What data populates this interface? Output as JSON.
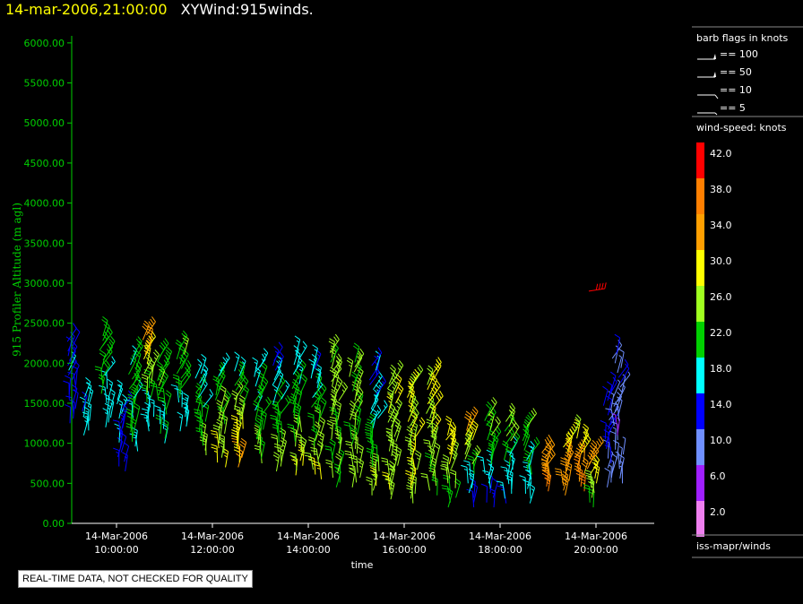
{
  "header": {
    "time": "14-mar-2006,21:00:00",
    "product": "XYWind:915winds."
  },
  "notice": "REAL-TIME DATA, NOT CHECKED FOR QUALITY",
  "legend": {
    "barb_title": "barb flags in knots",
    "barb_entries": [
      {
        "label": "== 100",
        "kind": "flag100"
      },
      {
        "label": "== 50",
        "kind": "flag50"
      },
      {
        "label": "== 10",
        "kind": "barb10"
      },
      {
        "label": "== 5",
        "kind": "barb5"
      }
    ],
    "speed_title": "wind-speed: knots",
    "speed_scale": [
      {
        "label": "42.0",
        "color": "#ff0000"
      },
      {
        "label": "38.0",
        "color": "#ff7f00"
      },
      {
        "label": "34.0",
        "color": "#ff9f00"
      },
      {
        "label": "30.0",
        "color": "#ffff00"
      },
      {
        "label": "26.0",
        "color": "#9fff1f"
      },
      {
        "label": "22.0",
        "color": "#00d000"
      },
      {
        "label": "18.0",
        "color": "#00ffff"
      },
      {
        "label": "14.0",
        "color": "#0000ff"
      },
      {
        "label": "10.0",
        "color": "#6f8fff"
      },
      {
        "label": "6.0",
        "color": "#9f1fff"
      },
      {
        "label": "2.0",
        "color": "#ef7fef"
      }
    ],
    "source": "iss-mapr/winds"
  },
  "chart_data": {
    "type": "scatter",
    "subtype": "wind-barbs",
    "title": "",
    "xlabel": "time",
    "ylabel": "915 Profiler Altitude (m agl)",
    "ylim": [
      0,
      6200
    ],
    "yticks": [
      "0.00",
      "500.00",
      "1000.00",
      "1500.00",
      "2000.00",
      "2500.00",
      "3000.00",
      "3500.00",
      "4000.00",
      "4500.00",
      "5000.00",
      "5500.00",
      "6000.00"
    ],
    "xlim": [
      "14-Mar-2006 09:00:00",
      "21:00:00"
    ],
    "xticks": [
      {
        "date": "14-Mar-2006",
        "time": "10:00:00"
      },
      {
        "date": "14-Mar-2006",
        "time": "12:00:00"
      },
      {
        "date": "14-Mar-2006",
        "time": "14:00:00"
      },
      {
        "date": "14-Mar-2006",
        "time": "16:00:00"
      },
      {
        "date": "14-Mar-2006",
        "time": "18:00:00"
      },
      {
        "date": "14-Mar-2006",
        "time": "20:00:00"
      }
    ],
    "colors": {
      "axis": "#00d000",
      "tick_text": "#ffffff"
    },
    "profiles": [
      {
        "t": 9.1,
        "bottom": 1250,
        "top": 2300,
        "ks": 15,
        "kt": 14
      },
      {
        "t": 9.4,
        "bottom": 1100,
        "top": 1600,
        "ks": 17,
        "kt": 17
      },
      {
        "t": 9.8,
        "bottom": 1200,
        "top": 2350,
        "ks": 18,
        "kt": 24
      },
      {
        "t": 10.1,
        "bottom": 650,
        "top": 1550,
        "ks": 15,
        "kt": 16
      },
      {
        "t": 10.4,
        "bottom": 900,
        "top": 2100,
        "ks": 20,
        "kt": 22
      },
      {
        "t": 10.7,
        "bottom": 1150,
        "top": 2400,
        "ks": 16,
        "kt": 36
      },
      {
        "t": 11.0,
        "bottom": 1000,
        "top": 2100,
        "ks": 20,
        "kt": 24
      },
      {
        "t": 11.4,
        "bottom": 1150,
        "top": 2200,
        "ks": 18,
        "kt": 24
      },
      {
        "t": 11.8,
        "bottom": 850,
        "top": 1900,
        "ks": 26,
        "kt": 18
      },
      {
        "t": 12.2,
        "bottom": 700,
        "top": 1950,
        "ks": 28,
        "kt": 20
      },
      {
        "t": 12.6,
        "bottom": 700,
        "top": 1900,
        "ks": 34,
        "kt": 18
      },
      {
        "t": 13.0,
        "bottom": 750,
        "top": 1950,
        "ks": 26,
        "kt": 18
      },
      {
        "t": 13.4,
        "bottom": 650,
        "top": 2050,
        "ks": 26,
        "kt": 16
      },
      {
        "t": 13.8,
        "bottom": 600,
        "top": 2100,
        "ks": 28,
        "kt": 18
      },
      {
        "t": 14.2,
        "bottom": 550,
        "top": 2000,
        "ks": 28,
        "kt": 16
      },
      {
        "t": 14.6,
        "bottom": 450,
        "top": 2150,
        "ks": 24,
        "kt": 26
      },
      {
        "t": 15.0,
        "bottom": 450,
        "top": 2050,
        "ks": 26,
        "kt": 24
      },
      {
        "t": 15.4,
        "bottom": 350,
        "top": 2000,
        "ks": 28,
        "kt": 14
      },
      {
        "t": 15.8,
        "bottom": 300,
        "top": 1850,
        "ks": 26,
        "kt": 28
      },
      {
        "t": 16.2,
        "bottom": 250,
        "top": 1800,
        "ks": 28,
        "kt": 28
      },
      {
        "t": 16.6,
        "bottom": 350,
        "top": 1850,
        "ks": 24,
        "kt": 30
      },
      {
        "t": 17.0,
        "bottom": 200,
        "top": 1150,
        "ks": 22,
        "kt": 30
      },
      {
        "t": 17.4,
        "bottom": 200,
        "top": 1250,
        "ks": 14,
        "kt": 34
      },
      {
        "t": 17.8,
        "bottom": 200,
        "top": 1350,
        "ks": 14,
        "kt": 26
      },
      {
        "t": 18.2,
        "bottom": 250,
        "top": 1300,
        "ks": 16,
        "kt": 26
      },
      {
        "t": 18.6,
        "bottom": 250,
        "top": 1250,
        "ks": 18,
        "kt": 24
      },
      {
        "t": 19.0,
        "bottom": 400,
        "top": 900,
        "ks": 36,
        "kt": 34
      },
      {
        "t": 19.4,
        "bottom": 350,
        "top": 1050,
        "ks": 34,
        "kt": 30
      },
      {
        "t": 19.7,
        "bottom": 400,
        "top": 1150,
        "ks": 38,
        "kt": 28
      },
      {
        "t": 19.95,
        "bottom": 200,
        "top": 900,
        "ks": 24,
        "kt": 36
      },
      {
        "t": 20.3,
        "bottom": 450,
        "top": 1700,
        "ks": 10,
        "kt": 14
      },
      {
        "t": 20.5,
        "bottom": 500,
        "top": 2150,
        "ks": 8,
        "kt": 12
      }
    ],
    "isolated": [
      {
        "t": 19.85,
        "z": 2900,
        "kts": 42
      }
    ]
  }
}
